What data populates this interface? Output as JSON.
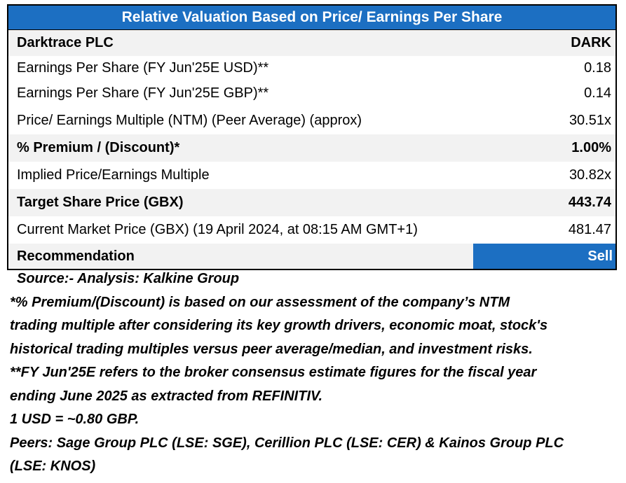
{
  "table": {
    "title": "Relative Valuation Based on Price/ Earnings Per Share",
    "rows": [
      {
        "label": "Darktrace PLC",
        "value": "DARK"
      },
      {
        "label": "Earnings Per Share (FY Jun'25E USD)**",
        "value": "0.18"
      },
      {
        "label": "Earnings Per Share (FY Jun'25E GBP)**",
        "value": "0.14"
      },
      {
        "label": "Price/ Earnings Multiple (NTM) (Peer Average) (approx)",
        "value": "30.51x"
      },
      {
        "label": "% Premium / (Discount)*",
        "value": "1.00%"
      },
      {
        "label": "Implied Price/Earnings Multiple",
        "value": "30.82x"
      },
      {
        "label": "Target Share Price (GBX)",
        "value": "443.74"
      },
      {
        "label": "Current Market Price (GBX) (19 April 2024, at 08:15 AM GMT+1)",
        "value": "481.47"
      },
      {
        "label": "Recommendation",
        "value": "Sell"
      }
    ]
  },
  "notes": {
    "source": "Source:- Analysis: Kalkine Group",
    "lines": [
      "*% Premium/(Discount) is based on our assessment of the company’s NTM",
      "trading multiple after considering its key growth drivers, economic moat, stock's",
      "historical trading multiples versus peer average/median, and investment risks.",
      "**FY Jun'25E refers to the broker consensus estimate figures for the fiscal year",
      "ending June 2025 as extracted from REFINITIV.",
      "1 USD = ~0.80 GBP.",
      "Peers: Sage Group PLC (LSE: SGE), Cerillion PLC (LSE: CER) & Kainos Group PLC",
      "(LSE: KNOS)"
    ]
  },
  "colors": {
    "header_blue": "#1c6fc2",
    "row_shade": "#f2f2f2"
  }
}
